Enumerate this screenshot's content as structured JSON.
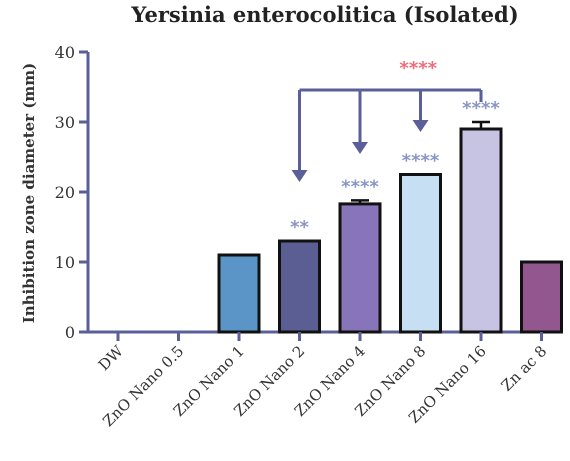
{
  "chart_data": {
    "type": "bar",
    "title": "Yersinia enterocolitica (Isolated)",
    "ylabel": "Inhibition zone diameter (mm)",
    "xlabel": "",
    "ylim": [
      0,
      40
    ],
    "yticks": [
      0,
      10,
      20,
      30,
      40
    ],
    "grid": false,
    "legend": "none",
    "categories": [
      "DW",
      "ZnO Nano 0.5",
      "ZnO Nano 1",
      "ZnO Nano 2",
      "ZnO Nano 4",
      "ZnO Nano 8",
      "ZnO Nano 16",
      "Zn ac 8"
    ],
    "values": [
      0,
      0,
      11,
      13,
      18.3,
      22.5,
      29,
      10
    ],
    "errors": [
      0,
      0,
      0,
      0,
      0.5,
      0,
      1,
      0
    ],
    "colors": [
      "#ffffff",
      "#ffffff",
      "#5b95c8",
      "#5b5e92",
      "#8874b8",
      "#c6dff2",
      "#c7c3e3",
      "#93578f"
    ],
    "significance": [
      "",
      "",
      "",
      "**",
      "****",
      "****",
      "****",
      ""
    ],
    "significance_color": "#8a96c6",
    "comparison": {
      "label": "****",
      "label_color": "#f06b7b",
      "from_index": 6,
      "targets": [
        3,
        4,
        5
      ],
      "line_color": "#5a5f99"
    }
  }
}
